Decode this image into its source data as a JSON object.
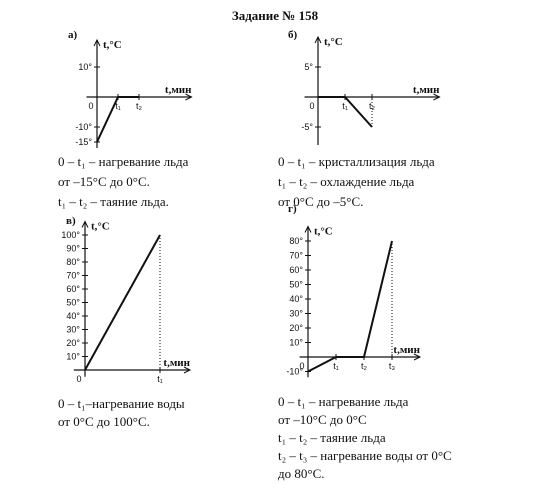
{
  "title": "Задание № 158",
  "chart_data": [
    {
      "type": "line",
      "label": "а)",
      "ylabel": "t,°C",
      "xlabel": "t,мин",
      "x": [
        0,
        1,
        2
      ],
      "series": [
        {
          "color": "#111111",
          "values": [
            -15,
            0,
            0
          ]
        }
      ],
      "xlim": [
        -0.5,
        4.5
      ],
      "ylim": [
        -17,
        19
      ],
      "xticks": [
        0,
        {
          "value": 1,
          "label": "t₁"
        },
        {
          "value": 2,
          "label": "t₂"
        }
      ],
      "yticks": [
        {
          "value": 10,
          "label": "10°"
        },
        {
          "value": -10,
          "label": "-10°"
        },
        {
          "value": -15,
          "label": "-15°"
        }
      ],
      "captions": [
        "0 – t₁ – нагревание льда",
        "от –15°C до 0°C.",
        "t₁ – t₂ – таяние льда."
      ]
    },
    {
      "type": "line",
      "label": "б)",
      "ylabel": "t,°C",
      "xlabel": "t,мин",
      "x": [
        0,
        1,
        2
      ],
      "series": [
        {
          "color": "#111111",
          "values": [
            0,
            0,
            -5
          ]
        }
      ],
      "xlim": [
        -0.5,
        4.5
      ],
      "ylim": [
        -8,
        10
      ],
      "xticks": [
        0,
        {
          "value": 1,
          "label": "t₁"
        },
        {
          "value": 2,
          "label": "t₂"
        }
      ],
      "yticks": [
        {
          "value": 5,
          "label": "5°"
        },
        {
          "value": -5,
          "label": "-5°"
        }
      ],
      "captions": [
        "0 – t₁ – кристаллизация льда",
        "t₁ – t₂ – охлаждение льда",
        "от 0°C до –5°C."
      ]
    },
    {
      "type": "line",
      "label": "в)",
      "ylabel": "t,°C",
      "xlabel": "t,мин",
      "x": [
        0,
        1
      ],
      "series": [
        {
          "color": "#111111",
          "values": [
            0,
            100
          ]
        }
      ],
      "xlim": [
        -0.15,
        1.4
      ],
      "ylim": [
        -5,
        110
      ],
      "xticks": [
        0,
        {
          "value": 1,
          "label": "t₁"
        }
      ],
      "yticks": [
        {
          "value": 10,
          "label": "10°"
        },
        {
          "value": 20,
          "label": "20°"
        },
        {
          "value": 30,
          "label": "30°"
        },
        {
          "value": 40,
          "label": "40°"
        },
        {
          "value": 50,
          "label": "50°"
        },
        {
          "value": 60,
          "label": "60°"
        },
        {
          "value": 70,
          "label": "70°"
        },
        {
          "value": 80,
          "label": "80°"
        },
        {
          "value": 90,
          "label": "90°"
        },
        {
          "value": 100,
          "label": "100°"
        }
      ],
      "captions": [
        "0 – t₁–нагревание воды",
        "от 0°C до 100°C."
      ]
    },
    {
      "type": "line",
      "label": "г)",
      "ylabel": "t,°C",
      "xlabel": "t,мин",
      "x": [
        0,
        1,
        2,
        3
      ],
      "series": [
        {
          "color": "#111111",
          "values": [
            -10,
            0,
            0,
            80
          ]
        }
      ],
      "xlim": [
        -0.3,
        4
      ],
      "ylim": [
        -14,
        90
      ],
      "xticks": [
        0,
        {
          "value": 1,
          "label": "t₁"
        },
        {
          "value": 2,
          "label": "t₂"
        },
        {
          "value": 3,
          "label": "t₃"
        }
      ],
      "yticks": [
        {
          "value": -10,
          "label": "-10°"
        },
        {
          "value": 10,
          "label": "10°"
        },
        {
          "value": 20,
          "label": "20°"
        },
        {
          "value": 30,
          "label": "30°"
        },
        {
          "value": 40,
          "label": "40°"
        },
        {
          "value": 50,
          "label": "50°"
        },
        {
          "value": 60,
          "label": "60°"
        },
        {
          "value": 70,
          "label": "70°"
        },
        {
          "value": 80,
          "label": "80°"
        }
      ],
      "captions": [
        "0 – t₁ – нагревание льда",
        "от –10°C до 0°C",
        "t₁ – t₂ – таяние льда",
        "t₂ – t₃ – нагревание воды от 0°C",
        "до 80°C."
      ]
    }
  ]
}
